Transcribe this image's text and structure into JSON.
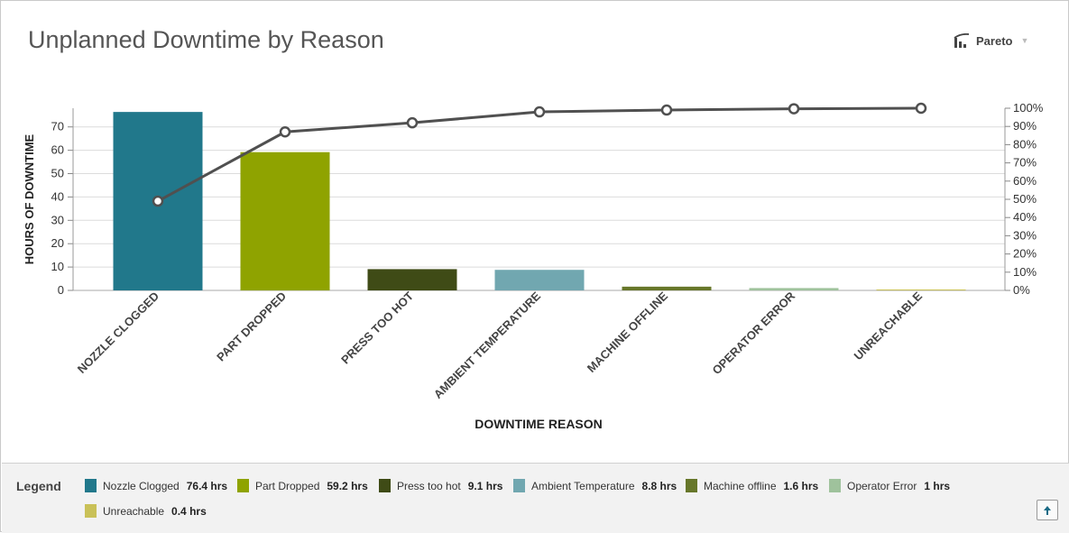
{
  "header": {
    "title": "Unplanned Downtime by Reason",
    "chart_type_label": "Pareto",
    "chart_type_icon": "pareto-chart-icon"
  },
  "chart_data": {
    "type": "bar",
    "title": "Unplanned Downtime by Reason",
    "xlabel": "DOWNTIME REASON",
    "ylabel": "HOURS OF DOWNTIME",
    "ylim": [
      0,
      78
    ],
    "y_ticks": [
      0,
      10,
      20,
      30,
      40,
      50,
      60,
      70
    ],
    "y2lim": [
      0,
      100
    ],
    "y2_ticks": [
      "0%",
      "10%",
      "20%",
      "30%",
      "40%",
      "50%",
      "60%",
      "70%",
      "80%",
      "90%",
      "100%"
    ],
    "categories": [
      "NOZZLE CLOGGED",
      "PART DROPPED",
      "PRESS TOO HOT",
      "AMBIENT TEMPERATURE",
      "MACHINE OFFLINE",
      "OPERATOR ERROR",
      "UNREACHABLE"
    ],
    "values": [
      76.4,
      59.2,
      9.1,
      8.8,
      1.6,
      1,
      0.4
    ],
    "colors": [
      "#21788b",
      "#8fa300",
      "#3f4b16",
      "#71a7b0",
      "#67772a",
      "#9fc29c",
      "#c9c158"
    ],
    "cumulative_percent": [
      49,
      87,
      92,
      98,
      99,
      99.7,
      100
    ],
    "line_color": "#505050",
    "grid": true,
    "legend": "bottom"
  },
  "legend": {
    "title": "Legend",
    "items": [
      {
        "label": "Nozzle Clogged",
        "value": "76.4 hrs",
        "color": "#21788b"
      },
      {
        "label": "Part Dropped",
        "value": "59.2 hrs",
        "color": "#8fa300"
      },
      {
        "label": "Press too hot",
        "value": "9.1 hrs",
        "color": "#3f4b16"
      },
      {
        "label": "Ambient Temperature",
        "value": "8.8 hrs",
        "color": "#71a7b0"
      },
      {
        "label": "Machine offline",
        "value": "1.6 hrs",
        "color": "#67772a"
      },
      {
        "label": "Operator Error",
        "value": "1 hrs",
        "color": "#9fc29c"
      },
      {
        "label": "Unreachable",
        "value": "0.4 hrs",
        "color": "#c9c158"
      }
    ]
  }
}
